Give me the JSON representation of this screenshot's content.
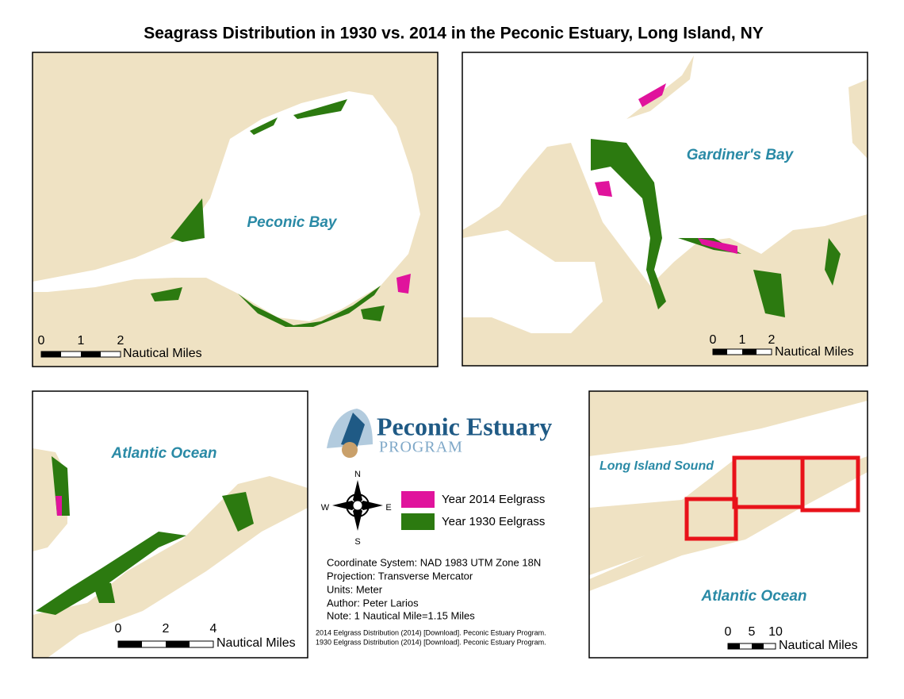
{
  "title": "Seagrass Distribution in 1930 vs. 2014 in the Peconic Estuary, Long Island, NY",
  "panels": [
    {
      "labels": [
        "Peconic Bay"
      ],
      "scale": {
        "ticks": [
          "0",
          "1",
          "2"
        ],
        "unit": "Nautical Miles"
      }
    },
    {
      "labels": [
        "Gardiner's Bay"
      ],
      "scale": {
        "ticks": [
          "0",
          "1",
          "2"
        ],
        "unit": "Nautical Miles"
      }
    },
    {
      "labels": [
        "Atlantic Ocean"
      ],
      "scale": {
        "ticks": [
          "0",
          "2",
          "4"
        ],
        "unit": "Nautical Miles"
      }
    },
    {
      "labels": [
        "Long Island Sound",
        "Atlantic Ocean"
      ],
      "scale": {
        "ticks": [
          "0",
          "5",
          "10"
        ],
        "unit": "Nautical Miles"
      }
    }
  ],
  "logo": {
    "name": "Peconic Estuary",
    "sub": "PROGRAM"
  },
  "compass": {
    "n": "N",
    "e": "E",
    "s": "S",
    "w": "W"
  },
  "legend": [
    {
      "label": "Year 2014 Eelgrass",
      "color": "#e0139c"
    },
    {
      "label": "Year 1930 Eelgrass",
      "color": "#2c7a10"
    }
  ],
  "info": [
    "Coordinate System: NAD 1983 UTM Zone 18N",
    "Projection: Transverse Mercator",
    "Units: Meter",
    "Author: Peter Larios",
    "Note: 1 Nautical Mile=1.15 Miles"
  ],
  "sources": [
    "2014 Eelgrass Distribution (2014) [Download]. Peconic Estuary Program.",
    "1930 Eelgrass Distribution (2014) [Download]. Peconic Estuary Program."
  ]
}
